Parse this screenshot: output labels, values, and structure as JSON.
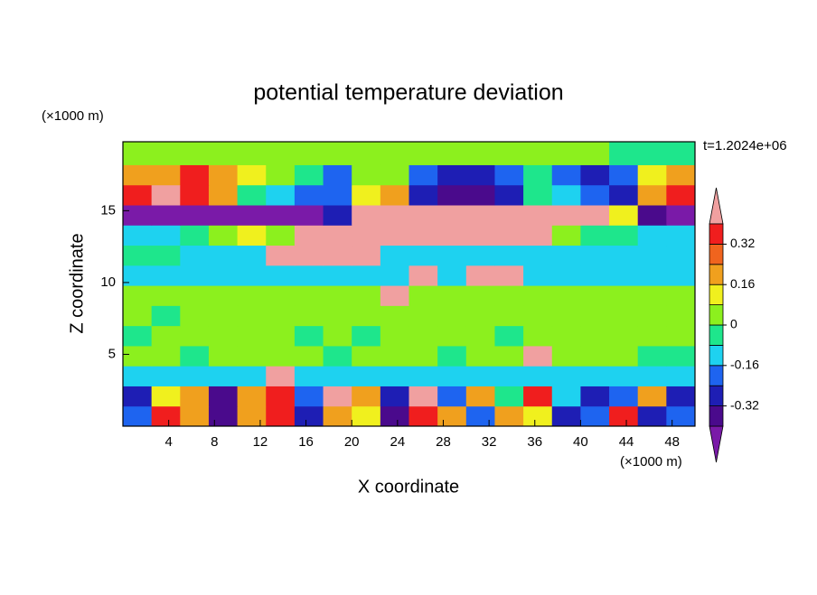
{
  "chart_data": {
    "type": "contour",
    "title": "potential temperature deviation",
    "x_label": "X coordinate",
    "y_label": "Z coordinate",
    "x_unit": "(×1000 m)",
    "y_unit": "(×1000 m)",
    "annotation": "t=1.2024e+06",
    "xlim": [
      0,
      50
    ],
    "ylim": [
      0,
      19.8
    ],
    "xticks": [
      4,
      8,
      12,
      16,
      20,
      24,
      28,
      32,
      36,
      40,
      44,
      48
    ],
    "yticks": [
      5,
      10,
      15
    ],
    "x": [
      1.25,
      3.75,
      6.25,
      8.75,
      11.25,
      13.75,
      16.25,
      18.75,
      21.25,
      23.75,
      26.25,
      28.75,
      31.25,
      33.75,
      36.25,
      38.75,
      41.25,
      43.75,
      46.25,
      48.75
    ],
    "y": [
      0.7,
      2.1,
      3.5,
      4.9,
      6.3,
      7.7,
      9.1,
      10.5,
      11.9,
      13.3,
      14.7,
      16.1,
      17.5,
      18.9
    ],
    "levels": [
      -0.4,
      -0.32,
      -0.24,
      -0.16,
      -0.08,
      0,
      0.08,
      0.16,
      0.24,
      0.32,
      0.4
    ],
    "colorbar_ticks": [
      -0.32,
      -0.16,
      0,
      0.16,
      0.32
    ],
    "colors": [
      "#7a1aa8",
      "#4a0a8c",
      "#1e1eb4",
      "#1e64f0",
      "#1ed2f0",
      "#1ee68c",
      "#8cf01e",
      "#f0f01e",
      "#f0a01e",
      "#f0641e",
      "#f01e1e",
      "#f0a0a0"
    ],
    "z": [
      [
        -0.2,
        0.36,
        0.2,
        -0.36,
        0.2,
        0.36,
        -0.28,
        0.2,
        0.12,
        -0.36,
        0.36,
        0.2,
        -0.2,
        0.2,
        0.12,
        -0.28,
        -0.2,
        0.36,
        -0.28,
        -0.2
      ],
      [
        -0.28,
        0.12,
        0.2,
        -0.36,
        0.2,
        0.36,
        -0.2,
        0.44,
        0.2,
        -0.28,
        0.44,
        -0.2,
        0.2,
        -0.04,
        0.36,
        -0.12,
        -0.28,
        -0.2,
        0.2,
        -0.28
      ],
      [
        -0.12,
        -0.12,
        -0.12,
        -0.12,
        -0.12,
        0.44,
        -0.12,
        -0.12,
        -0.12,
        -0.12,
        -0.12,
        -0.12,
        -0.12,
        -0.12,
        -0.12,
        -0.12,
        -0.12,
        -0.12,
        -0.12,
        -0.12
      ],
      [
        0.04,
        0.04,
        -0.04,
        0.04,
        0.04,
        0.04,
        0.04,
        -0.04,
        0.04,
        0.04,
        0.04,
        -0.04,
        0.04,
        0.04,
        0.44,
        0.04,
        0.04,
        0.04,
        -0.04,
        -0.04
      ],
      [
        -0.04,
        0.04,
        0.04,
        0.04,
        0.04,
        0.04,
        -0.04,
        0.04,
        -0.04,
        0.04,
        0.04,
        0.04,
        0.04,
        -0.04,
        0.04,
        0.04,
        0.04,
        0.04,
        0.04,
        0.04
      ],
      [
        0.04,
        -0.04,
        0.04,
        0.04,
        0.04,
        0.04,
        0.04,
        0.04,
        0.04,
        0.04,
        0.04,
        0.04,
        0.04,
        0.04,
        0.04,
        0.04,
        0.04,
        0.04,
        0.04,
        0.04
      ],
      [
        0.04,
        0.04,
        0.04,
        0.04,
        0.04,
        0.04,
        0.04,
        0.04,
        0.04,
        0.44,
        0.04,
        0.04,
        0.04,
        0.04,
        0.04,
        0.04,
        0.04,
        0.04,
        0.04,
        0.04
      ],
      [
        -0.12,
        -0.12,
        -0.12,
        -0.12,
        -0.12,
        -0.12,
        -0.12,
        -0.12,
        -0.12,
        -0.12,
        0.44,
        -0.12,
        0.44,
        0.44,
        -0.12,
        -0.12,
        -0.12,
        -0.12,
        -0.12,
        -0.12
      ],
      [
        -0.04,
        -0.04,
        -0.12,
        -0.12,
        -0.12,
        0.44,
        0.44,
        0.44,
        0.44,
        -0.12,
        -0.12,
        -0.12,
        -0.12,
        -0.12,
        -0.12,
        -0.12,
        -0.12,
        -0.12,
        -0.12,
        -0.12
      ],
      [
        -0.12,
        -0.12,
        -0.04,
        0.04,
        0.12,
        0.04,
        0.44,
        0.44,
        0.44,
        0.44,
        0.44,
        0.44,
        0.44,
        0.44,
        0.44,
        0.04,
        -0.04,
        -0.04,
        -0.12,
        -0.12
      ],
      [
        -0.44,
        -0.44,
        -0.44,
        -0.44,
        -0.44,
        -0.44,
        -0.44,
        -0.28,
        0.44,
        0.44,
        0.44,
        0.44,
        0.44,
        0.44,
        0.44,
        0.44,
        0.44,
        0.12,
        -0.36,
        -0.44
      ],
      [
        0.36,
        0.44,
        0.36,
        0.2,
        -0.04,
        -0.12,
        -0.2,
        -0.2,
        0.12,
        0.2,
        -0.28,
        -0.36,
        -0.36,
        -0.28,
        -0.04,
        -0.12,
        -0.2,
        -0.28,
        0.2,
        0.36
      ],
      [
        0.2,
        0.2,
        0.36,
        0.2,
        0.12,
        0.04,
        -0.04,
        -0.2,
        0.04,
        0.04,
        -0.2,
        -0.28,
        -0.28,
        -0.2,
        -0.04,
        -0.2,
        -0.28,
        -0.2,
        0.12,
        0.2
      ],
      [
        0.04,
        0.04,
        0.04,
        0.04,
        0.04,
        0.04,
        0.04,
        0.04,
        0.04,
        0.04,
        0.04,
        0.04,
        0.04,
        0.04,
        0.04,
        0.04,
        0.04,
        -0.04,
        -0.04,
        -0.04
      ]
    ]
  }
}
